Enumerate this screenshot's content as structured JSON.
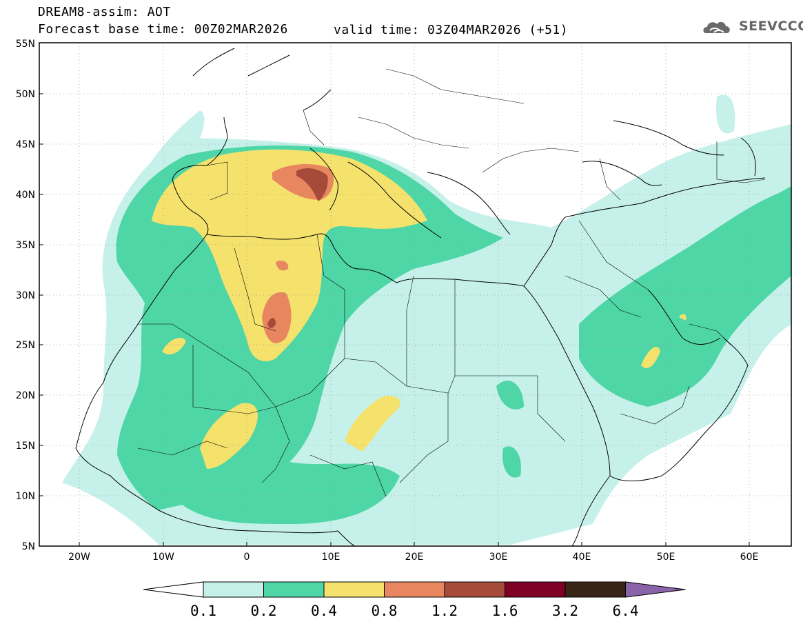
{
  "header": {
    "title": "DREAM8-assim: AOT",
    "base_time": "Forecast base time: 00Z02MAR2026",
    "valid_time": "valid time: 03Z04MAR2026 (+51)"
  },
  "logo": {
    "text": "SEEVCCC",
    "icon": "cloud-icon",
    "color": "#666666"
  },
  "map": {
    "lat_labels": [
      "55N",
      "50N",
      "45N",
      "40N",
      "35N",
      "30N",
      "25N",
      "20N",
      "15N",
      "10N",
      "5N"
    ],
    "lon_labels": [
      "20W",
      "10W",
      "0",
      "10E",
      "20E",
      "30E",
      "40E",
      "50E",
      "60E"
    ]
  },
  "colorbar": {
    "levels": [
      "0.1",
      "0.2",
      "0.4",
      "0.8",
      "1.2",
      "1.6",
      "3.2",
      "6.4"
    ],
    "colors": [
      "#ffffff",
      "#c6f1ea",
      "#4fd6a6",
      "#f4e26c",
      "#e8875f",
      "#a64b3a",
      "#7e0024",
      "#3a2417",
      "#8b63a8"
    ]
  }
}
